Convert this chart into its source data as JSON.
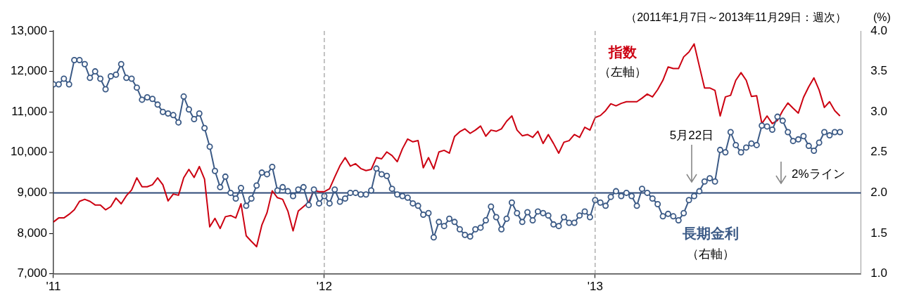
{
  "chart_data": {
    "type": "line",
    "subtitle": "（2011年1月7日～2013年11月29日：週次）",
    "y2label": "(%)",
    "x": [
      "2011-01-07",
      "2011-01-14",
      "2011-01-21",
      "2011-01-28",
      "2011-02-04",
      "2011-02-11",
      "2011-02-18",
      "2011-02-25",
      "2011-03-04",
      "2011-03-11",
      "2011-03-18",
      "2011-03-25",
      "2011-04-01",
      "2011-04-08",
      "2011-04-15",
      "2011-04-22",
      "2011-04-29",
      "2011-05-06",
      "2011-05-13",
      "2011-05-20",
      "2011-05-27",
      "2011-06-03",
      "2011-06-10",
      "2011-06-17",
      "2011-06-24",
      "2011-07-01",
      "2011-07-08",
      "2011-07-15",
      "2011-07-22",
      "2011-07-29",
      "2011-08-05",
      "2011-08-12",
      "2011-08-19",
      "2011-08-26",
      "2011-09-02",
      "2011-09-09",
      "2011-09-16",
      "2011-09-23",
      "2011-09-30",
      "2011-10-07",
      "2011-10-14",
      "2011-10-21",
      "2011-10-28",
      "2011-11-04",
      "2011-11-11",
      "2011-11-18",
      "2011-11-25",
      "2011-12-02",
      "2011-12-09",
      "2011-12-16",
      "2011-12-23",
      "2011-12-30",
      "2012-01-06",
      "2012-01-13",
      "2012-01-20",
      "2012-01-27",
      "2012-02-03",
      "2012-02-10",
      "2012-02-17",
      "2012-02-24",
      "2012-03-02",
      "2012-03-09",
      "2012-03-16",
      "2012-03-23",
      "2012-03-30",
      "2012-04-06",
      "2012-04-13",
      "2012-04-20",
      "2012-04-27",
      "2012-05-04",
      "2012-05-11",
      "2012-05-18",
      "2012-05-25",
      "2012-06-01",
      "2012-06-08",
      "2012-06-15",
      "2012-06-22",
      "2012-06-29",
      "2012-07-06",
      "2012-07-13",
      "2012-07-20",
      "2012-07-27",
      "2012-08-03",
      "2012-08-10",
      "2012-08-17",
      "2012-08-24",
      "2012-08-31",
      "2012-09-07",
      "2012-09-14",
      "2012-09-21",
      "2012-09-28",
      "2012-10-05",
      "2012-10-12",
      "2012-10-19",
      "2012-10-26",
      "2012-11-02",
      "2012-11-09",
      "2012-11-16",
      "2012-11-23",
      "2012-11-30",
      "2012-12-07",
      "2012-12-14",
      "2012-12-21",
      "2012-12-28",
      "2013-01-04",
      "2013-01-11",
      "2013-01-18",
      "2013-01-25",
      "2013-02-01",
      "2013-02-08",
      "2013-02-15",
      "2013-02-22",
      "2013-03-01",
      "2013-03-08",
      "2013-03-15",
      "2013-03-22",
      "2013-03-29",
      "2013-04-05",
      "2013-04-12",
      "2013-04-19",
      "2013-04-26",
      "2013-05-03",
      "2013-05-10",
      "2013-05-17",
      "2013-05-24",
      "2013-05-31",
      "2013-06-07",
      "2013-06-14",
      "2013-06-21",
      "2013-06-28",
      "2013-07-05",
      "2013-07-12",
      "2013-07-19",
      "2013-07-26",
      "2013-08-02",
      "2013-08-09",
      "2013-08-16",
      "2013-08-23",
      "2013-08-30",
      "2013-09-06",
      "2013-09-13",
      "2013-09-20",
      "2013-09-27",
      "2013-10-04",
      "2013-10-11",
      "2013-10-18",
      "2013-10-25",
      "2013-11-01",
      "2013-11-08",
      "2013-11-15",
      "2013-11-22",
      "2013-11-29"
    ],
    "series": [
      {
        "name": "指数",
        "color": "#cc0011",
        "marker": "none",
        "values": [
          8280,
          8380,
          8380,
          8470,
          8580,
          8790,
          8840,
          8790,
          8700,
          8700,
          8580,
          8660,
          8870,
          8730,
          8930,
          9070,
          9370,
          9150,
          9150,
          9200,
          9370,
          9200,
          8800,
          8970,
          8940,
          9370,
          9580,
          9380,
          9650,
          9340,
          8160,
          8370,
          8120,
          8410,
          8440,
          8380,
          8730,
          7940,
          7800,
          7670,
          8200,
          8510,
          9050,
          8880,
          8840,
          8550,
          8060,
          8550,
          8660,
          8770,
          9060,
          9030,
          9030,
          9100,
          9390,
          9670,
          9870,
          9660,
          9720,
          9600,
          9550,
          9580,
          9870,
          9840,
          10010,
          9920,
          9770,
          10090,
          10330,
          10260,
          10290,
          9620,
          9870,
          9590,
          10010,
          10050,
          9980,
          10390,
          10510,
          10580,
          10470,
          10550,
          10650,
          10400,
          10550,
          10520,
          10580,
          10770,
          10900,
          10550,
          10410,
          10440,
          10370,
          10520,
          10220,
          10440,
          10220,
          9980,
          10250,
          10290,
          10440,
          10370,
          10620,
          10550,
          10860,
          10910,
          11030,
          11200,
          11150,
          11210,
          11250,
          11250,
          11250,
          11340,
          11440,
          11370,
          11550,
          11780,
          12110,
          12070,
          12070,
          12360,
          12480,
          12680,
          12130,
          11590,
          11590,
          11530,
          10900,
          11370,
          11410,
          11780,
          11970,
          11780,
          11380,
          11400,
          10710,
          10900,
          10710,
          10790,
          11030,
          11220,
          11090,
          10970,
          11360,
          11620,
          11840,
          11540,
          11110,
          11250,
          11030,
          10900
        ]
      },
      {
        "name": "長期金利",
        "color": "#3b5a86",
        "marker": "circle",
        "axis": "y2",
        "values": [
          3.34,
          3.34,
          3.41,
          3.34,
          3.64,
          3.64,
          3.59,
          3.42,
          3.5,
          3.41,
          3.28,
          3.44,
          3.46,
          3.59,
          3.42,
          3.41,
          3.3,
          3.15,
          3.18,
          3.16,
          3.09,
          3.0,
          2.98,
          2.96,
          2.87,
          3.19,
          3.03,
          2.91,
          2.98,
          2.8,
          2.57,
          2.27,
          2.07,
          2.2,
          2.0,
          1.93,
          2.06,
          1.84,
          1.93,
          2.09,
          2.25,
          2.23,
          2.32,
          2.03,
          2.07,
          2.02,
          1.96,
          2.04,
          2.07,
          1.85,
          2.04,
          1.87,
          1.96,
          1.87,
          2.04,
          1.89,
          1.93,
          2.0,
          2.0,
          1.98,
          1.98,
          2.03,
          2.3,
          2.23,
          2.21,
          2.05,
          1.98,
          1.96,
          1.94,
          1.87,
          1.84,
          1.73,
          1.75,
          1.45,
          1.64,
          1.59,
          1.68,
          1.64,
          1.55,
          1.48,
          1.46,
          1.55,
          1.57,
          1.66,
          1.83,
          1.7,
          1.55,
          1.68,
          1.88,
          1.75,
          1.64,
          1.76,
          1.66,
          1.77,
          1.75,
          1.72,
          1.61,
          1.59,
          1.7,
          1.63,
          1.63,
          1.72,
          1.77,
          1.7,
          1.91,
          1.88,
          1.84,
          1.95,
          2.02,
          1.96,
          2.0,
          1.96,
          1.84,
          2.05,
          2.0,
          1.93,
          1.86,
          1.71,
          1.74,
          1.71,
          1.66,
          1.75,
          1.91,
          1.96,
          2.02,
          2.14,
          2.18,
          2.14,
          2.53,
          2.5,
          2.75,
          2.59,
          2.5,
          2.56,
          2.61,
          2.59,
          2.83,
          2.82,
          2.78,
          2.94,
          2.89,
          2.75,
          2.64,
          2.66,
          2.7,
          2.58,
          2.52,
          2.62,
          2.75,
          2.71,
          2.75,
          2.75
        ]
      }
    ],
    "xlim": [
      "2011-01-07",
      "2013-12-27"
    ],
    "xticks": [
      {
        "value": "2011-01-07",
        "label": "'11"
      },
      {
        "value": "2012-01-06",
        "label": "'12"
      },
      {
        "value": "2013-01-04",
        "label": "'13"
      }
    ],
    "ylim": [
      7000,
      13000
    ],
    "yticks": [
      {
        "value": 7000,
        "label": "7,000"
      },
      {
        "value": 8000,
        "label": "8,000"
      },
      {
        "value": 9000,
        "label": "9,000"
      },
      {
        "value": 10000,
        "label": "10,000"
      },
      {
        "value": 11000,
        "label": "11,000"
      },
      {
        "value": 12000,
        "label": "12,000"
      },
      {
        "value": 13000,
        "label": "13,000"
      }
    ],
    "y2lim": [
      1,
      4
    ],
    "y2ticks": [
      {
        "value": 1,
        "label": "1.0"
      },
      {
        "value": 1.5,
        "label": "1.5"
      },
      {
        "value": 2,
        "label": "2.0"
      },
      {
        "value": 2.5,
        "label": "2.5"
      },
      {
        "value": 3,
        "label": "3.0"
      },
      {
        "value": 3.5,
        "label": "3.5"
      },
      {
        "value": 4,
        "label": "4.0"
      }
    ],
    "ref_lines": [
      {
        "axis": "y2",
        "value": 2,
        "color": "#2e4a78"
      }
    ],
    "annotations": [
      "（左軸）",
      "（右軸）",
      "5月22日",
      "2%ライン"
    ],
    "grid": "x",
    "legend": false
  }
}
